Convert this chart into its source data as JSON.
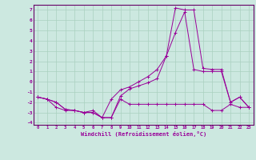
{
  "xlabel": "Windchill (Refroidissement éolien,°C)",
  "background_color": "#cce8e0",
  "grid_color": "#aad0c0",
  "line_color": "#990099",
  "spine_color": "#660066",
  "xlim": [
    -0.5,
    23.5
  ],
  "ylim": [
    -4.2,
    7.5
  ],
  "yticks": [
    -4,
    -3,
    -2,
    -1,
    0,
    1,
    2,
    3,
    4,
    5,
    6,
    7
  ],
  "xticks": [
    0,
    1,
    2,
    3,
    4,
    5,
    6,
    7,
    8,
    9,
    10,
    11,
    12,
    13,
    14,
    15,
    16,
    17,
    18,
    19,
    20,
    21,
    22,
    23
  ],
  "line1_x": [
    0,
    1,
    2,
    3,
    4,
    5,
    6,
    7,
    8,
    9,
    10,
    11,
    12,
    13,
    14,
    15,
    16,
    17,
    18,
    19,
    20,
    21,
    22,
    23
  ],
  "line1_y": [
    -1.5,
    -1.7,
    -2.0,
    -2.7,
    -2.8,
    -3.0,
    -3.0,
    -3.5,
    -3.5,
    -1.4,
    -0.7,
    -0.4,
    -0.1,
    0.3,
    2.5,
    7.2,
    7.0,
    7.0,
    1.3,
    1.2,
    1.2,
    -2.0,
    -1.5,
    -2.5
  ],
  "line2_x": [
    0,
    1,
    2,
    3,
    4,
    5,
    6,
    7,
    8,
    9,
    10,
    11,
    12,
    13,
    14,
    15,
    16,
    17,
    18,
    19,
    20,
    21,
    22,
    23
  ],
  "line2_y": [
    -1.5,
    -1.7,
    -2.5,
    -2.8,
    -2.8,
    -3.0,
    -2.8,
    -3.5,
    -3.5,
    -1.7,
    -2.2,
    -2.2,
    -2.2,
    -2.2,
    -2.2,
    -2.2,
    -2.2,
    -2.2,
    -2.2,
    -2.8,
    -2.8,
    -2.2,
    -2.5,
    -2.5
  ],
  "line3_x": [
    0,
    1,
    2,
    3,
    4,
    5,
    6,
    7,
    8,
    9,
    10,
    11,
    12,
    13,
    14,
    15,
    16,
    17,
    18,
    19,
    20,
    21,
    22,
    23
  ],
  "line3_y": [
    -1.5,
    -1.7,
    -2.0,
    -2.7,
    -2.8,
    -3.0,
    -3.0,
    -3.5,
    -1.7,
    -0.8,
    -0.5,
    0.0,
    0.5,
    1.2,
    2.5,
    4.8,
    6.8,
    1.2,
    1.0,
    1.0,
    1.0,
    -2.0,
    -1.5,
    -2.5
  ]
}
